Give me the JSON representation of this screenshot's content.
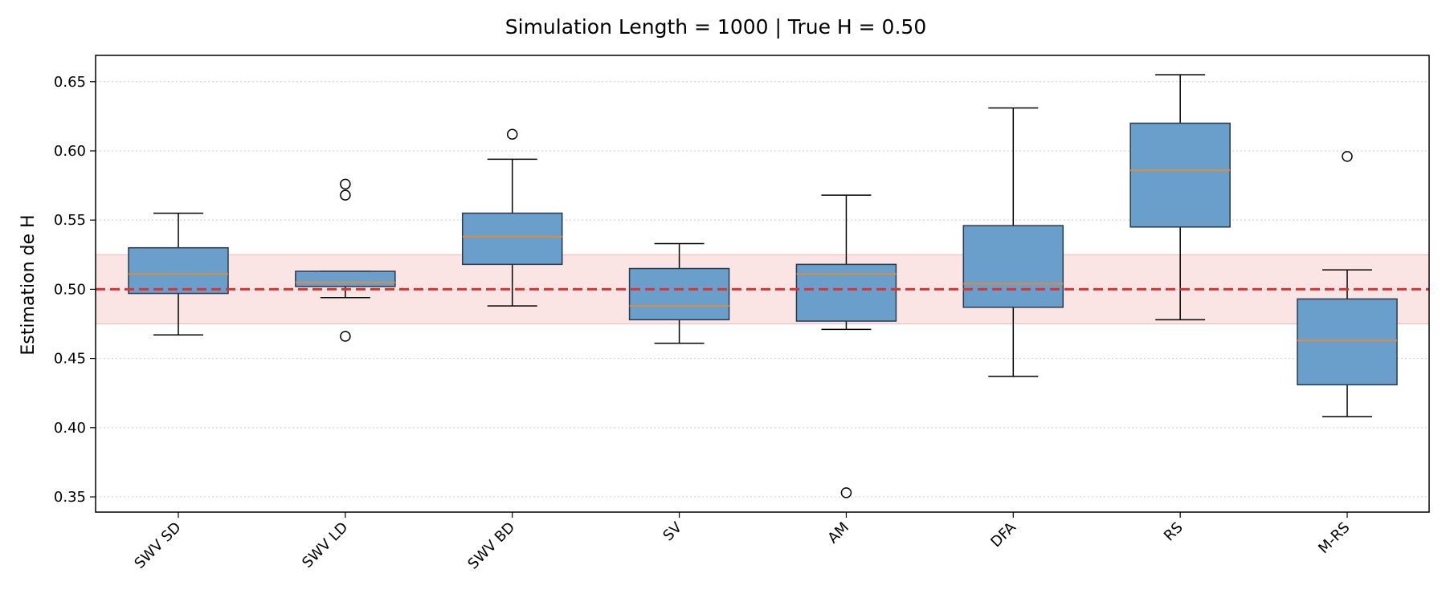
{
  "chart_data": {
    "type": "box",
    "title": "Simulation Length = 1000  |  True H = 0.50",
    "xlabel": "",
    "ylabel": "Estimation de H",
    "ylim": [
      0.339,
      0.669
    ],
    "yticks": [
      "0.35",
      "0.40",
      "0.45",
      "0.50",
      "0.55",
      "0.60",
      "0.65"
    ],
    "grid": "y-dotted",
    "reference": {
      "value": 0.5,
      "band": [
        0.475,
        0.525
      ],
      "color": "#e03030",
      "band_color": "#fbe4e4"
    },
    "box_color": "#6a9ecb",
    "median_color": "#e08a3c",
    "categories": [
      "SWV SD",
      "SWV LD",
      "SWV BD",
      "SV",
      "AM",
      "DFA",
      "RS",
      "M-RS"
    ],
    "boxes": [
      {
        "whisker_low": 0.467,
        "q1": 0.497,
        "median": 0.511,
        "q3": 0.53,
        "whisker_high": 0.555,
        "outliers": []
      },
      {
        "whisker_low": 0.494,
        "q1": 0.502,
        "median": 0.505,
        "q3": 0.513,
        "whisker_high": 0.513,
        "outliers": [
          0.576,
          0.568,
          0.466
        ]
      },
      {
        "whisker_low": 0.488,
        "q1": 0.518,
        "median": 0.538,
        "q3": 0.555,
        "whisker_high": 0.594,
        "outliers": [
          0.612
        ]
      },
      {
        "whisker_low": 0.461,
        "q1": 0.478,
        "median": 0.488,
        "q3": 0.515,
        "whisker_high": 0.533,
        "outliers": []
      },
      {
        "whisker_low": 0.471,
        "q1": 0.477,
        "median": 0.511,
        "q3": 0.518,
        "whisker_high": 0.568,
        "outliers": [
          0.353
        ]
      },
      {
        "whisker_low": 0.437,
        "q1": 0.487,
        "median": 0.504,
        "q3": 0.546,
        "whisker_high": 0.631,
        "outliers": []
      },
      {
        "whisker_low": 0.478,
        "q1": 0.545,
        "median": 0.586,
        "q3": 0.62,
        "whisker_high": 0.655,
        "outliers": []
      },
      {
        "whisker_low": 0.408,
        "q1": 0.431,
        "median": 0.463,
        "q3": 0.493,
        "whisker_high": 0.514,
        "outliers": [
          0.596
        ]
      }
    ]
  }
}
